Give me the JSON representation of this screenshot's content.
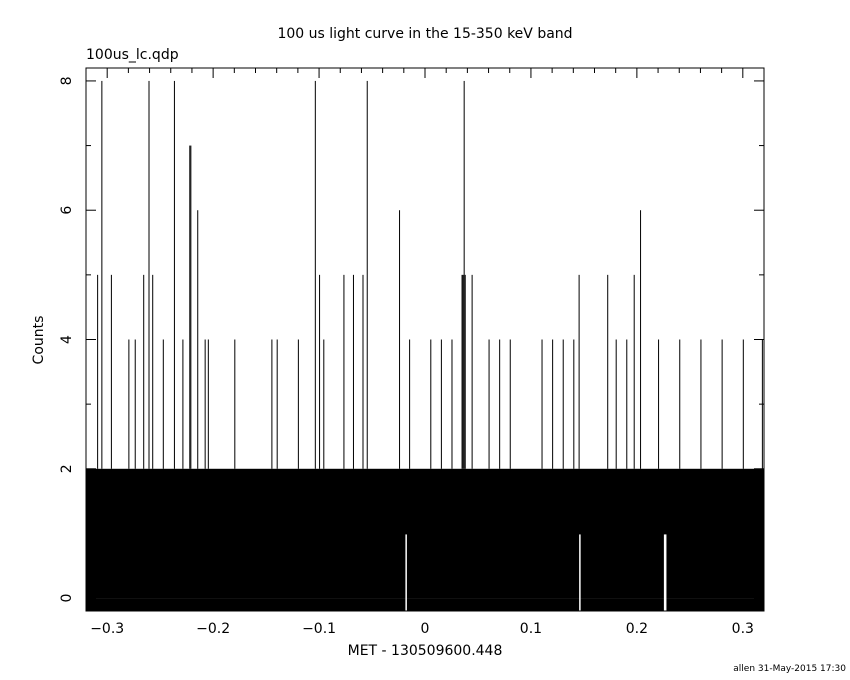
{
  "chart_data": {
    "type": "bar",
    "title": "100 us light curve in the 15-350 keV band",
    "subtitle": "100us_lc.qdp",
    "xlabel": "MET - 130509600.448",
    "ylabel": "Counts",
    "footer": "allen 31-May-2015 17:30",
    "xlim": [
      -0.32,
      0.32
    ],
    "ylim": [
      -0.2,
      8.2
    ],
    "bin_width": 0.0001,
    "x_ticks": [
      -0.3,
      -0.2,
      -0.1,
      0,
      0.1,
      0.2,
      0.3
    ],
    "x_tick_labels": [
      "−0.3",
      "−0.2",
      "−0.1",
      "0",
      "0.1",
      "0.2",
      "0.3"
    ],
    "y_ticks": [
      0,
      2,
      4,
      6,
      8
    ],
    "y_tick_labels": [
      "0",
      "2",
      "4",
      "6",
      "8"
    ],
    "grid": false,
    "series": [
      {
        "base_counts": 2,
        "peaks": [
          {
            "x": -0.3055,
            "y": 8
          },
          {
            "x": -0.261,
            "y": 8
          },
          {
            "x": -0.237,
            "y": 8
          },
          {
            "x": -0.104,
            "y": 8
          },
          {
            "x": -0.055,
            "y": 8
          },
          {
            "x": 0.0365,
            "y": 8
          },
          {
            "x": -0.2225,
            "y": 7
          },
          {
            "x": -0.2215,
            "y": 7
          },
          {
            "x": -0.215,
            "y": 6
          },
          {
            "x": -0.0245,
            "y": 6
          },
          {
            "x": 0.203,
            "y": 6
          },
          {
            "x": -0.3095,
            "y": 5
          },
          {
            "x": -0.2965,
            "y": 5
          },
          {
            "x": -0.266,
            "y": 5
          },
          {
            "x": -0.2575,
            "y": 5
          },
          {
            "x": -0.1,
            "y": 5
          },
          {
            "x": -0.077,
            "y": 5
          },
          {
            "x": -0.068,
            "y": 5
          },
          {
            "x": -0.059,
            "y": 5
          },
          {
            "x": 0.0345,
            "y": 5
          },
          {
            "x": 0.0355,
            "y": 5
          },
          {
            "x": 0.0375,
            "y": 5
          },
          {
            "x": 0.044,
            "y": 5
          },
          {
            "x": 0.145,
            "y": 5
          },
          {
            "x": 0.172,
            "y": 5
          },
          {
            "x": 0.197,
            "y": 5
          },
          {
            "x": -0.28,
            "y": 4
          },
          {
            "x": -0.274,
            "y": 4
          },
          {
            "x": -0.2475,
            "y": 4
          },
          {
            "x": -0.229,
            "y": 4
          },
          {
            "x": -0.208,
            "y": 4
          },
          {
            "x": -0.205,
            "y": 4
          },
          {
            "x": -0.18,
            "y": 4
          },
          {
            "x": -0.145,
            "y": 4
          },
          {
            "x": -0.14,
            "y": 4
          },
          {
            "x": -0.12,
            "y": 4
          },
          {
            "x": -0.096,
            "y": 4
          },
          {
            "x": -0.015,
            "y": 4
          },
          {
            "x": 0.005,
            "y": 4
          },
          {
            "x": 0.015,
            "y": 4
          },
          {
            "x": 0.025,
            "y": 4
          },
          {
            "x": 0.06,
            "y": 4
          },
          {
            "x": 0.07,
            "y": 4
          },
          {
            "x": 0.08,
            "y": 4
          },
          {
            "x": 0.11,
            "y": 4
          },
          {
            "x": 0.12,
            "y": 4
          },
          {
            "x": 0.13,
            "y": 4
          },
          {
            "x": 0.14,
            "y": 4
          },
          {
            "x": 0.18,
            "y": 4
          },
          {
            "x": 0.19,
            "y": 4
          },
          {
            "x": 0.22,
            "y": 4
          },
          {
            "x": 0.24,
            "y": 4
          },
          {
            "x": 0.26,
            "y": 4
          },
          {
            "x": 0.28,
            "y": 4
          },
          {
            "x": 0.3,
            "y": 4
          },
          {
            "x": 0.318,
            "y": 4
          }
        ],
        "zero_gaps": [
          -0.0185,
          0.1455,
          0.2255,
          0.2265
        ]
      }
    ]
  }
}
